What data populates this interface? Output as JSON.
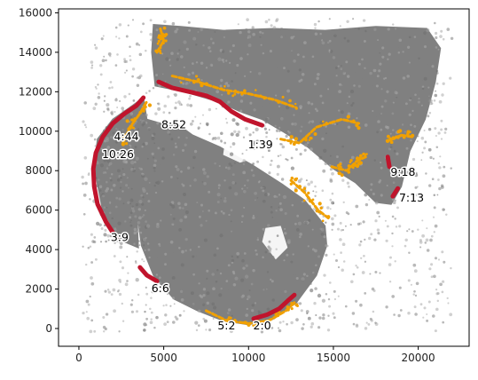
{
  "chart_data": {
    "type": "scatter",
    "title": "",
    "xlabel": "",
    "ylabel": "",
    "xlim": [
      -1200,
      23000
    ],
    "ylim": [
      16200,
      -900
    ],
    "y_inverted": true,
    "grid": false,
    "legend": "none",
    "x_ticks": [
      0,
      5000,
      10000,
      15000,
      20000
    ],
    "x_tick_labels": [
      "0",
      "5000",
      "10000",
      "15000",
      "20000"
    ],
    "y_ticks": [
      0,
      2000,
      4000,
      6000,
      8000,
      10000,
      12000,
      14000,
      16000
    ],
    "y_tick_labels": [
      "0",
      "2000",
      "4000",
      "6000",
      "8000",
      "10000",
      "12000",
      "14000",
      "16000"
    ],
    "colors": {
      "tissue": "#808080",
      "background_spots": "#a9a9a9",
      "border": "#f0a000",
      "highlight": "#c0142c"
    },
    "series": [
      {
        "role": "tissue body",
        "color": "#808080",
        "regions": [
          [
            [
              3700,
              4200
            ],
            [
              4400,
              2700
            ],
            [
              5600,
              1500
            ],
            [
              7000,
              900
            ],
            [
              8500,
              400
            ],
            [
              10000,
              200
            ],
            [
              11500,
              500
            ],
            [
              12800,
              1300
            ],
            [
              14000,
              2700
            ],
            [
              14600,
              4200
            ],
            [
              14500,
              5200
            ],
            [
              13300,
              6500
            ],
            [
              12000,
              7300
            ],
            [
              10200,
              8300
            ],
            [
              8300,
              9200
            ],
            [
              6700,
              9800
            ],
            [
              5900,
              10300
            ],
            [
              4800,
              10400
            ],
            [
              4000,
              10600
            ],
            [
              3300,
              10100
            ],
            [
              3000,
              9000
            ],
            [
              3300,
              7500
            ],
            [
              3400,
              6000
            ]
          ],
          [
            [
              900,
              8200
            ],
            [
              1400,
              6000
            ],
            [
              2400,
              4500
            ],
            [
              3500,
              4100
            ],
            [
              3400,
              6000
            ],
            [
              3300,
              7500
            ],
            [
              3000,
              9000
            ],
            [
              3300,
              10100
            ],
            [
              4000,
              10600
            ],
            [
              3800,
              11700
            ],
            [
              3000,
              11200
            ],
            [
              2000,
              10600
            ],
            [
              1100,
              9600
            ]
          ],
          [
            [
              4500,
              12300
            ],
            [
              6200,
              12000
            ],
            [
              8200,
              11500
            ],
            [
              9500,
              11000
            ],
            [
              10800,
              10600
            ],
            [
              12000,
              10000
            ],
            [
              13500,
              9200
            ],
            [
              15000,
              8100
            ],
            [
              16300,
              7400
            ],
            [
              17500,
              6400
            ],
            [
              18400,
              6300
            ],
            [
              19000,
              7200
            ],
            [
              19500,
              9000
            ],
            [
              20400,
              10600
            ],
            [
              21000,
              12500
            ],
            [
              21300,
              14200
            ],
            [
              20500,
              15200
            ],
            [
              17500,
              15300
            ],
            [
              14500,
              15100
            ],
            [
              11500,
              15200
            ],
            [
              8500,
              15100
            ],
            [
              6000,
              15300
            ],
            [
              4400,
              15400
            ],
            [
              4300,
              14000
            ]
          ]
        ],
        "holes": [
          [
            [
              10800,
              4400
            ],
            [
              11600,
              3500
            ],
            [
              12300,
              4100
            ],
            [
              11900,
              5200
            ],
            [
              11000,
              5100
            ]
          ],
          [
            [
              8500,
              8800
            ],
            [
              9500,
              8400
            ],
            [
              10200,
              8600
            ],
            [
              10100,
              9400
            ],
            [
              9200,
              9800
            ],
            [
              8600,
              9400
            ]
          ]
        ]
      },
      {
        "role": "tissue border",
        "color": "#f0a000",
        "paths": [
          [
            [
              7500,
              900
            ],
            [
              8700,
              400
            ],
            [
              10000,
              250
            ],
            [
              11200,
              400
            ],
            [
              12200,
              900
            ],
            [
              12800,
              1400
            ]
          ],
          [
            [
              2600,
              9400
            ],
            [
              3000,
              10200
            ],
            [
              3600,
              10900
            ],
            [
              4000,
              11500
            ]
          ],
          [
            [
              5500,
              12800
            ],
            [
              7000,
              12500
            ],
            [
              8500,
              12100
            ],
            [
              10000,
              11900
            ],
            [
              11500,
              11600
            ],
            [
              12800,
              11200
            ]
          ],
          [
            [
              12500,
              7500
            ],
            [
              13300,
              6900
            ],
            [
              14100,
              6000
            ],
            [
              14700,
              5600
            ]
          ],
          [
            [
              14900,
              8200
            ],
            [
              15800,
              8000
            ],
            [
              16400,
              8500
            ],
            [
              16900,
              8700
            ]
          ],
          [
            [
              11900,
              9600
            ],
            [
              13000,
              9400
            ],
            [
              14000,
              10200
            ],
            [
              15500,
              10600
            ],
            [
              16500,
              10400
            ]
          ],
          [
            [
              18200,
              9500
            ],
            [
              19000,
              9800
            ],
            [
              19700,
              9700
            ]
          ],
          [
            [
              4600,
              14000
            ],
            [
              5000,
              14600
            ],
            [
              4800,
              15200
            ]
          ]
        ]
      },
      {
        "role": "highlighted edge",
        "color": "#c0142c",
        "paths": [
          [
            [
              10300,
              500
            ],
            [
              11100,
              700
            ],
            [
              11800,
              1000
            ],
            [
              12300,
              1400
            ],
            [
              12700,
              1700
            ]
          ],
          [
            [
              3600,
              3100
            ],
            [
              4000,
              2700
            ],
            [
              4600,
              2400
            ]
          ],
          [
            [
              2200,
              4600
            ],
            [
              1600,
              5400
            ],
            [
              1100,
              6300
            ],
            [
              900,
              7200
            ],
            [
              850,
              8100
            ],
            [
              1000,
              8900
            ],
            [
              1400,
              9700
            ],
            [
              2000,
              10400
            ],
            [
              2700,
              10900
            ],
            [
              3400,
              11300
            ],
            [
              3800,
              11700
            ]
          ],
          [
            [
              4700,
              12500
            ],
            [
              5500,
              12200
            ],
            [
              6500,
              12000
            ],
            [
              7500,
              11800
            ],
            [
              8300,
              11500
            ],
            [
              9000,
              11000
            ],
            [
              9800,
              10600
            ],
            [
              10800,
              10300
            ]
          ],
          [
            [
              18500,
              6700
            ],
            [
              18800,
              7100
            ]
          ],
          [
            [
              18300,
              8200
            ],
            [
              18200,
              8700
            ]
          ]
        ]
      },
      {
        "role": "scattered spots",
        "color": "#a9a9a9",
        "count": 1200,
        "x_range": [
          200,
          22000
        ],
        "y_range": [
          -200,
          15700
        ]
      }
    ],
    "annotations": [
      {
        "text": "5:2",
        "x": 8700,
        "y": 120
      },
      {
        "text": "2:0",
        "x": 10800,
        "y": 120
      },
      {
        "text": "6:6",
        "x": 4800,
        "y": 2000
      },
      {
        "text": "3:9",
        "x": 2400,
        "y": 4600
      },
      {
        "text": "7:13",
        "x": 19600,
        "y": 6600
      },
      {
        "text": "9:18",
        "x": 19100,
        "y": 7900
      },
      {
        "text": "10:26",
        "x": 2300,
        "y": 8800
      },
      {
        "text": "4:44",
        "x": 2800,
        "y": 9700
      },
      {
        "text": "1:39",
        "x": 10700,
        "y": 9300
      },
      {
        "text": "8:52",
        "x": 5600,
        "y": 10300
      }
    ]
  }
}
